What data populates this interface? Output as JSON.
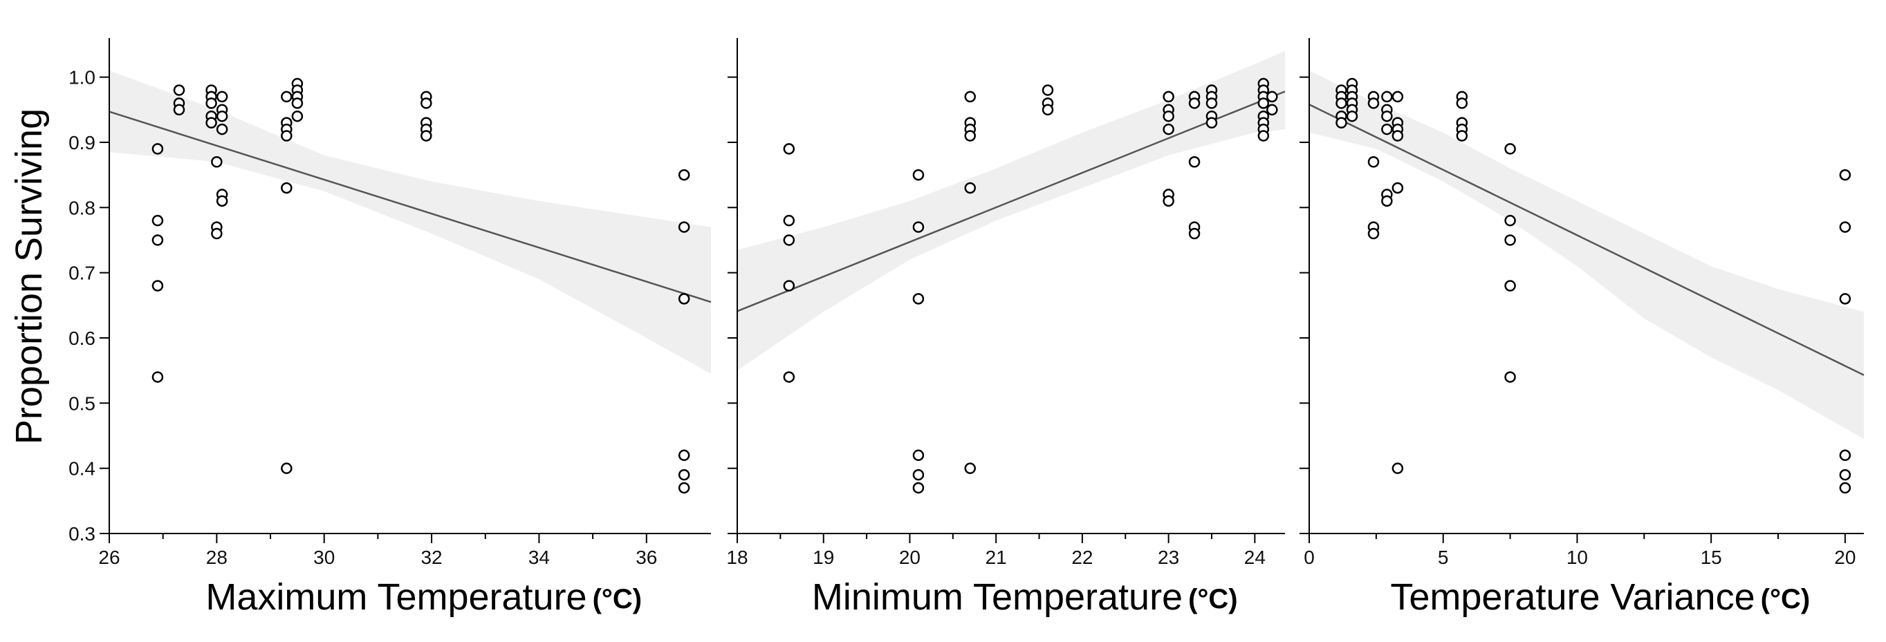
{
  "figure": {
    "ylabel": "Proportion Surviving"
  },
  "chart_data": [
    {
      "type": "scatter",
      "xlabel": "Maximum Temperature",
      "xunit": "(°C)",
      "ylabel": "Proportion Surviving",
      "xlim": [
        26,
        37.2
      ],
      "ylim": [
        0.3,
        1.06
      ],
      "xticks": [
        26,
        28,
        30,
        32,
        34,
        36
      ],
      "xminor": [
        27,
        29,
        31,
        33,
        35
      ],
      "yticks": [
        0.3,
        0.4,
        0.5,
        0.6,
        0.7,
        0.8,
        0.9,
        1.0
      ],
      "ytick_labels": [
        "0.3",
        "0.4",
        "0.5",
        "0.6",
        "0.7",
        "0.8",
        "0.9",
        "1.0"
      ],
      "points": [
        [
          26.9,
          0.89
        ],
        [
          26.9,
          0.78
        ],
        [
          26.9,
          0.75
        ],
        [
          26.9,
          0.68
        ],
        [
          26.9,
          0.54
        ],
        [
          27.3,
          0.98
        ],
        [
          27.3,
          0.96
        ],
        [
          27.3,
          0.95
        ],
        [
          27.9,
          0.98
        ],
        [
          27.9,
          0.97
        ],
        [
          27.9,
          0.96
        ],
        [
          27.9,
          0.94
        ],
        [
          27.9,
          0.93
        ],
        [
          28.0,
          0.87
        ],
        [
          28.0,
          0.77
        ],
        [
          28.0,
          0.76
        ],
        [
          28.1,
          0.97
        ],
        [
          28.1,
          0.95
        ],
        [
          28.1,
          0.94
        ],
        [
          28.1,
          0.92
        ],
        [
          28.1,
          0.82
        ],
        [
          28.1,
          0.81
        ],
        [
          29.3,
          0.97
        ],
        [
          29.3,
          0.93
        ],
        [
          29.3,
          0.92
        ],
        [
          29.3,
          0.91
        ],
        [
          29.3,
          0.83
        ],
        [
          29.3,
          0.4
        ],
        [
          29.5,
          0.99
        ],
        [
          29.5,
          0.98
        ],
        [
          29.5,
          0.97
        ],
        [
          29.5,
          0.96
        ],
        [
          29.5,
          0.94
        ],
        [
          31.9,
          0.97
        ],
        [
          31.9,
          0.96
        ],
        [
          31.9,
          0.93
        ],
        [
          31.9,
          0.92
        ],
        [
          31.9,
          0.91
        ],
        [
          36.7,
          0.85
        ],
        [
          36.7,
          0.77
        ],
        [
          36.7,
          0.66
        ],
        [
          36.7,
          0.42
        ],
        [
          36.7,
          0.39
        ],
        [
          36.7,
          0.37
        ]
      ],
      "fit": {
        "x": [
          26,
          37.2
        ],
        "y": [
          0.947,
          0.655
        ]
      },
      "band": {
        "x": [
          26,
          28,
          30,
          32,
          34,
          36,
          37.2
        ],
        "lower": [
          0.885,
          0.87,
          0.825,
          0.76,
          0.69,
          0.6,
          0.545
        ],
        "upper": [
          1.01,
          0.95,
          0.88,
          0.84,
          0.81,
          0.785,
          0.77
        ]
      }
    },
    {
      "type": "scatter",
      "xlabel": "Minimum Temperature",
      "xunit": "(°C)",
      "ylabel": "Proportion Surviving",
      "xlim": [
        18,
        24.35
      ],
      "ylim": [
        0.3,
        1.06
      ],
      "xticks": [
        18,
        19,
        20,
        21,
        22,
        23,
        24
      ],
      "xminor": [
        18.5,
        19.5,
        20.5,
        21.5,
        22.5,
        23.5
      ],
      "yticks": [
        0.3,
        0.4,
        0.5,
        0.6,
        0.7,
        0.8,
        0.9,
        1.0
      ],
      "points": [
        [
          18.6,
          0.89
        ],
        [
          18.6,
          0.78
        ],
        [
          18.6,
          0.75
        ],
        [
          18.6,
          0.68
        ],
        [
          18.6,
          0.54
        ],
        [
          20.1,
          0.85
        ],
        [
          20.1,
          0.77
        ],
        [
          20.1,
          0.66
        ],
        [
          20.1,
          0.42
        ],
        [
          20.1,
          0.39
        ],
        [
          20.1,
          0.37
        ],
        [
          20.7,
          0.97
        ],
        [
          20.7,
          0.93
        ],
        [
          20.7,
          0.92
        ],
        [
          20.7,
          0.91
        ],
        [
          20.7,
          0.83
        ],
        [
          20.7,
          0.4
        ],
        [
          21.6,
          0.98
        ],
        [
          21.6,
          0.96
        ],
        [
          21.6,
          0.95
        ],
        [
          23.0,
          0.97
        ],
        [
          23.0,
          0.95
        ],
        [
          23.0,
          0.94
        ],
        [
          23.0,
          0.92
        ],
        [
          23.0,
          0.82
        ],
        [
          23.0,
          0.81
        ],
        [
          23.3,
          0.97
        ],
        [
          23.3,
          0.96
        ],
        [
          23.3,
          0.87
        ],
        [
          23.3,
          0.77
        ],
        [
          23.3,
          0.76
        ],
        [
          23.5,
          0.98
        ],
        [
          23.5,
          0.97
        ],
        [
          23.5,
          0.96
        ],
        [
          23.5,
          0.94
        ],
        [
          23.5,
          0.93
        ],
        [
          24.1,
          0.99
        ],
        [
          24.1,
          0.98
        ],
        [
          24.1,
          0.97
        ],
        [
          24.1,
          0.96
        ],
        [
          24.1,
          0.94
        ],
        [
          24.1,
          0.93
        ],
        [
          24.1,
          0.92
        ],
        [
          24.1,
          0.91
        ],
        [
          24.2,
          0.97
        ],
        [
          24.2,
          0.95
        ]
      ],
      "fit": {
        "x": [
          18,
          24.35
        ],
        "y": [
          0.641,
          0.978
        ]
      },
      "band": {
        "x": [
          18,
          19,
          20,
          21,
          22,
          23,
          24,
          24.35
        ],
        "lower": [
          0.55,
          0.64,
          0.72,
          0.78,
          0.83,
          0.88,
          0.915,
          0.92
        ],
        "upper": [
          0.735,
          0.77,
          0.81,
          0.86,
          0.915,
          0.965,
          1.02,
          1.04
        ]
      }
    },
    {
      "type": "scatter",
      "xlabel": "Temperature Variance",
      "xunit": "(°C)",
      "ylabel": "Proportion Surviving",
      "xlim": [
        0,
        20.7
      ],
      "ylim": [
        0.3,
        1.06
      ],
      "xticks": [
        0,
        5,
        10,
        15,
        20
      ],
      "xminor": [
        2.5,
        7.5,
        12.5,
        17.5
      ],
      "yticks": [
        0.3,
        0.4,
        0.5,
        0.6,
        0.7,
        0.8,
        0.9,
        1.0
      ],
      "points": [
        [
          1.2,
          0.98
        ],
        [
          1.2,
          0.97
        ],
        [
          1.2,
          0.96
        ],
        [
          1.2,
          0.94
        ],
        [
          1.2,
          0.93
        ],
        [
          1.6,
          0.99
        ],
        [
          1.6,
          0.98
        ],
        [
          1.6,
          0.97
        ],
        [
          1.6,
          0.96
        ],
        [
          1.6,
          0.95
        ],
        [
          1.6,
          0.94
        ],
        [
          2.4,
          0.97
        ],
        [
          2.4,
          0.96
        ],
        [
          2.4,
          0.87
        ],
        [
          2.4,
          0.77
        ],
        [
          2.4,
          0.76
        ],
        [
          2.9,
          0.97
        ],
        [
          2.9,
          0.95
        ],
        [
          2.9,
          0.94
        ],
        [
          2.9,
          0.92
        ],
        [
          2.9,
          0.82
        ],
        [
          2.9,
          0.81
        ],
        [
          3.3,
          0.97
        ],
        [
          3.3,
          0.93
        ],
        [
          3.3,
          0.92
        ],
        [
          3.3,
          0.91
        ],
        [
          3.3,
          0.83
        ],
        [
          3.3,
          0.4
        ],
        [
          5.7,
          0.97
        ],
        [
          5.7,
          0.96
        ],
        [
          5.7,
          0.93
        ],
        [
          5.7,
          0.92
        ],
        [
          5.7,
          0.91
        ],
        [
          7.5,
          0.89
        ],
        [
          7.5,
          0.78
        ],
        [
          7.5,
          0.75
        ],
        [
          7.5,
          0.68
        ],
        [
          7.5,
          0.54
        ],
        [
          20.0,
          0.85
        ],
        [
          20.0,
          0.77
        ],
        [
          20.0,
          0.66
        ],
        [
          20.0,
          0.42
        ],
        [
          20.0,
          0.39
        ],
        [
          20.0,
          0.37
        ]
      ],
      "fit": {
        "x": [
          0,
          20.7
        ],
        "y": [
          0.958,
          0.543
        ]
      },
      "band": {
        "x": [
          0,
          2.5,
          5,
          7.5,
          10,
          12.5,
          15,
          17.5,
          20.7
        ],
        "lower": [
          0.915,
          0.89,
          0.84,
          0.78,
          0.71,
          0.63,
          0.57,
          0.52,
          0.445
        ],
        "upper": [
          1.01,
          0.96,
          0.915,
          0.86,
          0.81,
          0.76,
          0.71,
          0.675,
          0.64
        ]
      }
    }
  ]
}
